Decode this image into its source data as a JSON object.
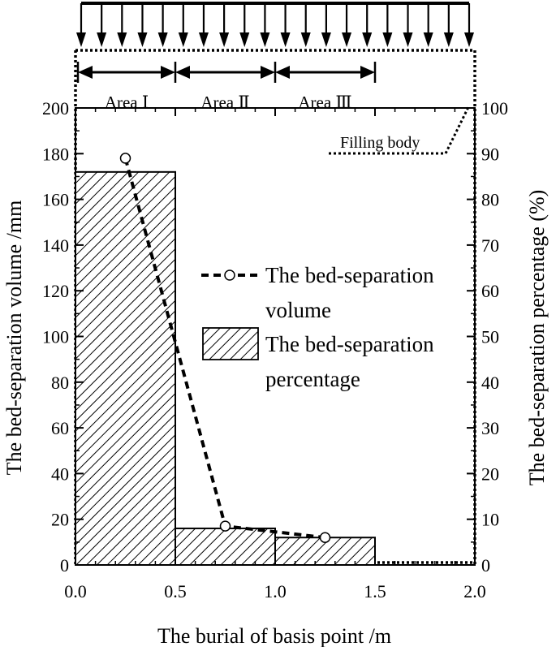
{
  "chart_data": {
    "type": "bar+line",
    "xlabel": "The burial of basis point /m",
    "ylabel_left": "The bed-separation volume /mm",
    "ylabel_right": "The bed-separation percentage (%)",
    "xlim": [
      0,
      2.0
    ],
    "ylim_left": [
      0,
      200
    ],
    "ylim_right": [
      0,
      100
    ],
    "x_ticks": [
      "0.0",
      "0.5",
      "1.0",
      "1.5",
      "2.0"
    ],
    "y_ticks_left": [
      "0",
      "20",
      "40",
      "60",
      "80",
      "100",
      "120",
      "140",
      "160",
      "180",
      "200"
    ],
    "y_ticks_right": [
      "0",
      "10",
      "20",
      "30",
      "40",
      "50",
      "60",
      "70",
      "80",
      "90",
      "100"
    ],
    "bars": {
      "name": "The bed-separation percentage",
      "bins": [
        [
          0,
          0.5
        ],
        [
          0.5,
          1.0
        ],
        [
          1.0,
          1.5
        ]
      ],
      "values": [
        86,
        8,
        6
      ]
    },
    "line": {
      "name": "The bed-separation volume",
      "x": [
        0.25,
        0.75,
        1.25
      ],
      "y": [
        178,
        17,
        12
      ]
    },
    "legend": {
      "line_label_1": "The bed-separation",
      "line_label_2": "volume",
      "bar_label_1": "The bed-separation",
      "bar_label_2": "percentage"
    },
    "areas": [
      {
        "label": "Area Ⅰ",
        "range": [
          0,
          0.5
        ]
      },
      {
        "label": "Area Ⅱ",
        "range": [
          0.5,
          1.0
        ]
      },
      {
        "label": "Area Ⅲ",
        "range": [
          1.0,
          1.5
        ]
      }
    ],
    "annotation": "Filling body",
    "load_arrow_count": 20
  }
}
